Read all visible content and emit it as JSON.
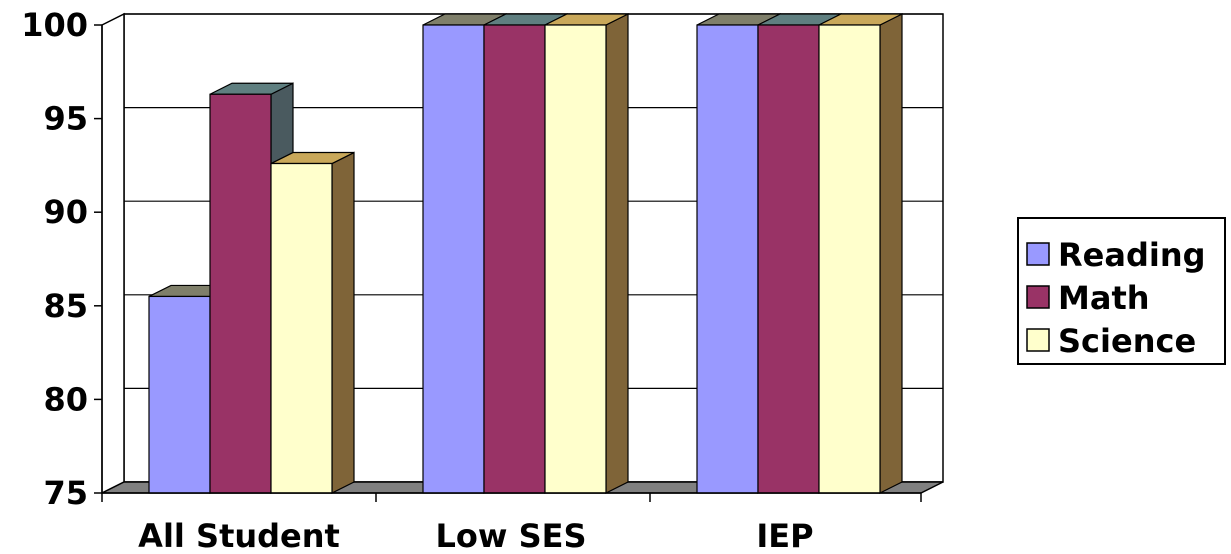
{
  "chart_data": {
    "type": "bar",
    "style": "3d-clustered-column",
    "categories": [
      "All Student",
      "Low SES",
      "IEP"
    ],
    "series": [
      {
        "name": "Reading",
        "values": [
          85.5,
          100,
          100
        ],
        "color": "#9999ff",
        "top": "#7f7f6a",
        "side": "#5c5c7a"
      },
      {
        "name": "Math",
        "values": [
          96.3,
          100,
          100
        ],
        "color": "#993366",
        "top": "#5f7f80",
        "side": "#4a5a5f"
      },
      {
        "name": "Science",
        "values": [
          92.6,
          100,
          100
        ],
        "color": "#ffffcc",
        "top": "#c9a85a",
        "side": "#7f6438"
      }
    ],
    "ylim": [
      75,
      100
    ],
    "yticks": [
      75,
      80,
      85,
      90,
      95,
      100
    ],
    "grid": true,
    "legend": "right",
    "title": "",
    "xlabel": "",
    "ylabel": ""
  }
}
